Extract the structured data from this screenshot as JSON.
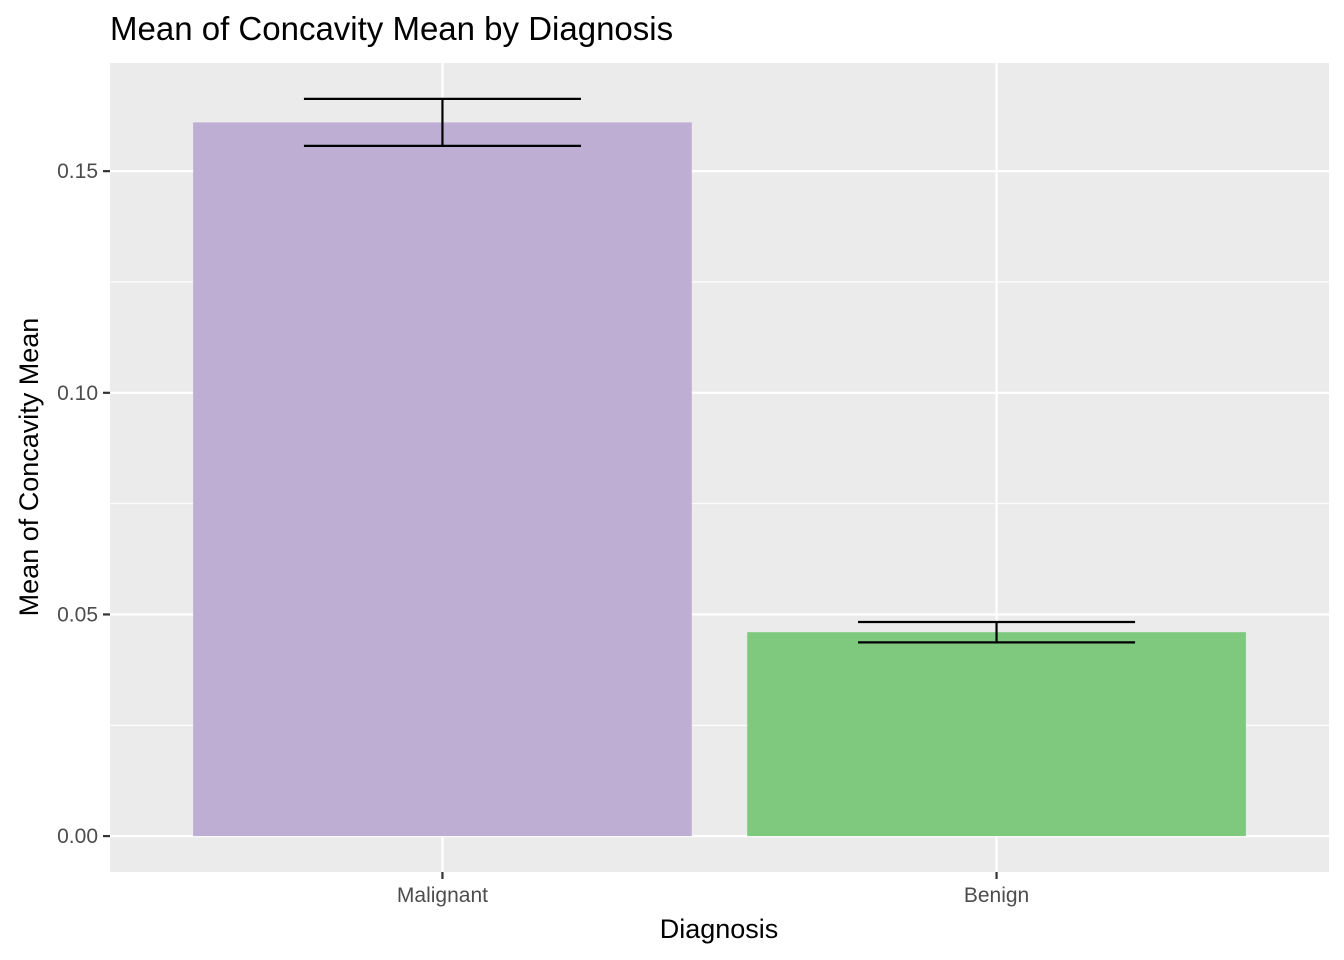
{
  "chart_data": {
    "type": "bar",
    "title": "Mean of Concavity Mean by Diagnosis",
    "xlabel": "Diagnosis",
    "ylabel": "Mean of Concavity Mean",
    "categories": [
      "Malignant",
      "Benign"
    ],
    "values": [
      0.161,
      0.046
    ],
    "error_bars": [
      {
        "low": 0.1557,
        "high": 0.1663
      },
      {
        "low": 0.0437,
        "high": 0.0483
      }
    ],
    "bar_colors": [
      "#BEAED4",
      "#7FC97F"
    ],
    "ylim": [
      -0.0081,
      0.1744
    ],
    "yticks": [
      0.0,
      0.05,
      0.1,
      0.15
    ],
    "ytick_labels": [
      "0.00",
      "0.05",
      "0.10",
      "0.15"
    ],
    "grid": true,
    "panel_background": "#EBEBEB",
    "legend": "none"
  }
}
